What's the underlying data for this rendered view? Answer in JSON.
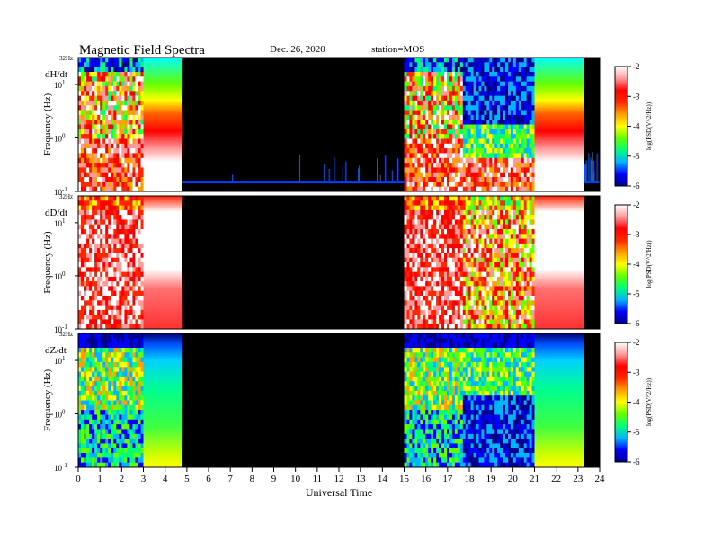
{
  "header": {
    "title": "Magnetic Field Spectra",
    "date": "Dec. 26, 2020",
    "station": "station=MOS"
  },
  "chart_data": {
    "type": "heatmap",
    "title": "Magnetic Field Spectra",
    "xlabel": "Universal Time",
    "xlim": [
      0,
      24
    ],
    "x_ticks": [
      "0",
      "1",
      "2",
      "3",
      "4",
      "5",
      "6",
      "7",
      "8",
      "9",
      "10",
      "11",
      "12",
      "13",
      "14",
      "15",
      "16",
      "17",
      "18",
      "19",
      "20",
      "21",
      "22",
      "23",
      "24"
    ],
    "y_scale": "log",
    "ylim_hz": [
      0.1,
      32
    ],
    "colorbar": {
      "label": "log(PSD(V^2/Hz))",
      "range": [
        -6,
        -2
      ],
      "ticks": [
        "-2",
        "-3",
        "-4",
        "-5",
        "-6"
      ],
      "colors": [
        "#00008c",
        "#0000ff",
        "#00b4ff",
        "#00ff78",
        "#64ff00",
        "#ffff00",
        "#ffa000",
        "#ff2800",
        "#ff0000",
        "#ff9a9a",
        "#ffffff"
      ]
    },
    "panels": [
      {
        "label": "dH/dt",
        "ylabel": "Frequency (Hz)",
        "y_top_label": "32Hz",
        "y_tick_labels": [
          "10^1",
          "10^0",
          "10^-1"
        ],
        "segments": [
          {
            "start": 0.0,
            "end": 3.0,
            "kind": "active"
          },
          {
            "start": 3.0,
            "end": 4.8,
            "kind": "gradient"
          },
          {
            "start": 4.8,
            "end": 15.0,
            "kind": "quiet"
          },
          {
            "start": 15.0,
            "end": 17.7,
            "kind": "active"
          },
          {
            "start": 17.7,
            "end": 21.0,
            "kind": "mixed"
          },
          {
            "start": 21.0,
            "end": 23.3,
            "kind": "gradient"
          },
          {
            "start": 23.3,
            "end": 24.0,
            "kind": "quiet"
          }
        ]
      },
      {
        "label": "dD/dt",
        "ylabel": "Frequency (Hz)",
        "y_top_label": "32Hz",
        "y_tick_labels": [
          "10^1",
          "10^0",
          "10^-1"
        ],
        "segments": [
          {
            "start": 0.0,
            "end": 3.0,
            "kind": "hot"
          },
          {
            "start": 3.0,
            "end": 4.8,
            "kind": "hot_flat"
          },
          {
            "start": 4.8,
            "end": 15.0,
            "kind": "quiet"
          },
          {
            "start": 15.0,
            "end": 17.7,
            "kind": "hot"
          },
          {
            "start": 17.7,
            "end": 21.0,
            "kind": "hot_mixed"
          },
          {
            "start": 21.0,
            "end": 23.3,
            "kind": "hot_flat"
          },
          {
            "start": 23.3,
            "end": 24.0,
            "kind": "quiet"
          }
        ]
      },
      {
        "label": "dZ/dt",
        "ylabel": "Frequency (Hz)",
        "y_top_label": "32Hz",
        "y_tick_labels": [
          "10^1",
          "10^0",
          "10^-1"
        ],
        "segments": [
          {
            "start": 0.0,
            "end": 3.0,
            "kind": "cool"
          },
          {
            "start": 3.0,
            "end": 4.8,
            "kind": "cool_flat"
          },
          {
            "start": 4.8,
            "end": 15.0,
            "kind": "quiet"
          },
          {
            "start": 15.0,
            "end": 17.7,
            "kind": "cool"
          },
          {
            "start": 17.7,
            "end": 21.0,
            "kind": "cool_deep"
          },
          {
            "start": 21.0,
            "end": 23.3,
            "kind": "cool_flat"
          },
          {
            "start": 23.3,
            "end": 24.0,
            "kind": "quiet"
          }
        ]
      }
    ]
  }
}
